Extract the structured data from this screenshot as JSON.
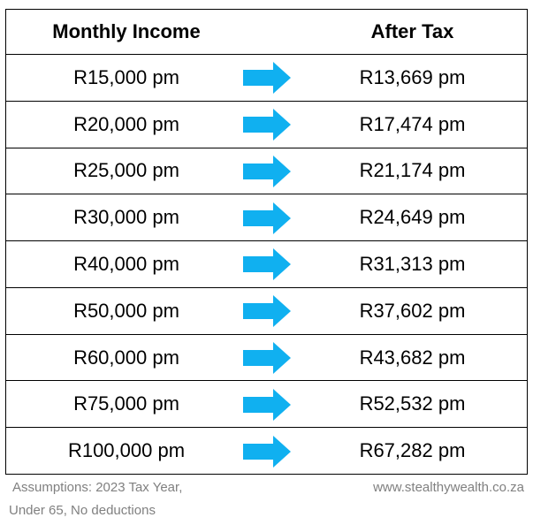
{
  "header": {
    "columns": [
      "Monthly Income",
      "After Tax"
    ]
  },
  "table": {
    "rows": [
      [
        "R15,000 pm",
        "R13,669 pm"
      ],
      [
        "R20,000 pm",
        "R17,474 pm"
      ],
      [
        "R25,000 pm",
        "R21,174 pm"
      ],
      [
        "R30,000 pm",
        "R24,649 pm"
      ],
      [
        "R40,000 pm",
        "R31,313 pm"
      ],
      [
        "R50,000 pm",
        "R37,602 pm"
      ],
      [
        "R60,000 pm",
        "R43,682 pm"
      ],
      [
        "R75,000 pm",
        "R52,532 pm"
      ],
      [
        "R100,000 pm",
        "R67,282 pm"
      ]
    ]
  },
  "footer": {
    "assumptions": [
      "Assumptions: 2023 Tax Year,",
      "Under 65, No deductions"
    ],
    "website": "www.stealthywealth.co.za"
  }
}
